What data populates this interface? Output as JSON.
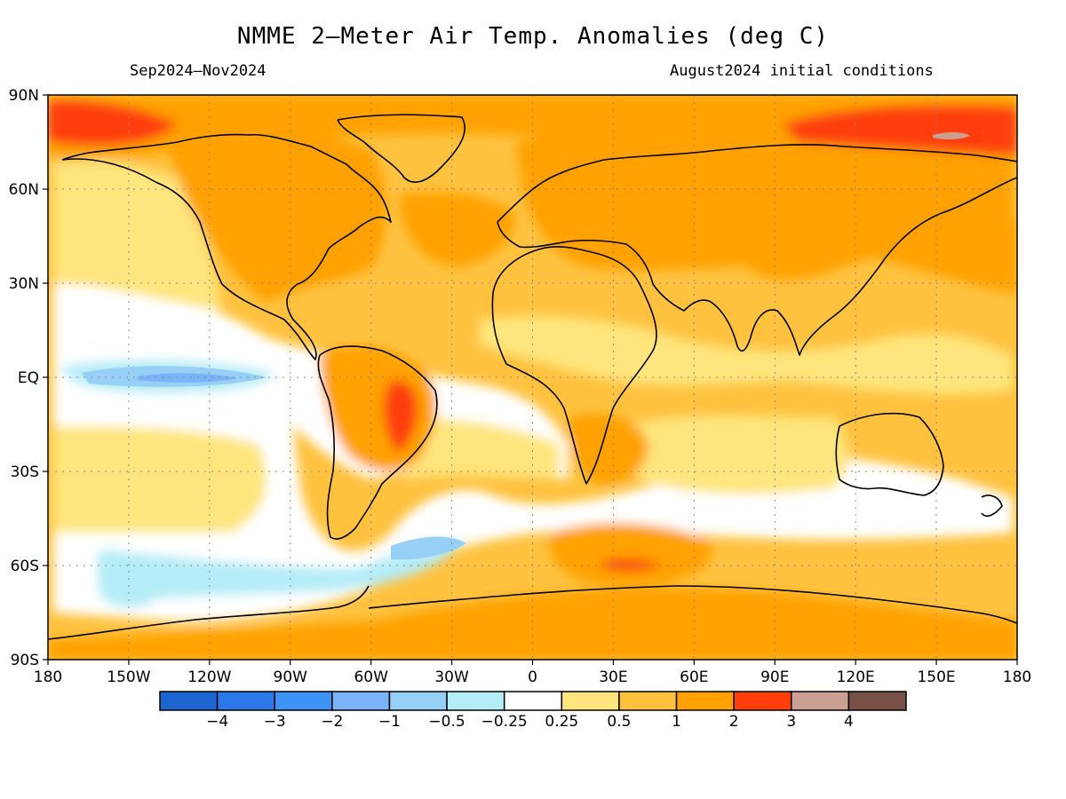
{
  "header": {
    "title": "NMME 2–Meter Air Temp. Anomalies (deg C)",
    "period": "Sep2024–Nov2024",
    "init": "August2024 initial conditions"
  },
  "axes": {
    "lat_labels": [
      "90N",
      "60N",
      "30N",
      "EQ",
      "30S",
      "60S",
      "90S"
    ],
    "lat_values": [
      90,
      60,
      30,
      0,
      -30,
      -60,
      -90
    ],
    "lon_labels": [
      "180",
      "150W",
      "120W",
      "90W",
      "60W",
      "30W",
      "0",
      "30E",
      "60E",
      "90E",
      "120E",
      "150E",
      "180"
    ],
    "lon_values": [
      -180,
      -150,
      -120,
      -90,
      -60,
      -30,
      0,
      30,
      60,
      90,
      120,
      150,
      180
    ]
  },
  "colorbar": {
    "colors": [
      "#1b64d1",
      "#2b78eb",
      "#3d94f5",
      "#78b4f7",
      "#97d0f6",
      "#b4ecf7",
      "#ffffff",
      "#ffe57d",
      "#ffc23f",
      "#ffa100",
      "#ff3e0a",
      "#cba093",
      "#775046"
    ],
    "labels": [
      "−4",
      "−3",
      "−2",
      "−1",
      "−0.5",
      "−0.25",
      "0.25",
      "0.5",
      "1",
      "2",
      "3",
      "4"
    ]
  },
  "chart_data": {
    "type": "heatmap",
    "title": "NMME 2–Meter Air Temp. Anomalies (deg C)",
    "subtitle_left": "Sep2024–Nov2024",
    "subtitle_right": "August2024 initial conditions",
    "units": "deg C",
    "xlim": [
      -180,
      180
    ],
    "ylim": [
      -90,
      90
    ],
    "grid": true,
    "contour_levels": [
      -4,
      -3,
      -2,
      -1,
      -0.5,
      -0.25,
      0.25,
      0.5,
      1,
      2,
      3,
      4
    ],
    "background_class": "0.5 to 1",
    "regions": [
      {
        "name": "Arctic north of Alaska",
        "lon": [
          -180,
          -150
        ],
        "lat": [
          75,
          90
        ],
        "class": "2 to 3"
      },
      {
        "name": "Arctic north of Siberia",
        "lon": [
          85,
          180
        ],
        "lat": [
          70,
          90
        ],
        "class": "2 to 3"
      },
      {
        "name": "Siberian Arctic peak",
        "lon": [
          115,
          125
        ],
        "lat": [
          74,
          78
        ],
        "class": "3 to 4"
      },
      {
        "name": "Eurasia",
        "lon": [
          30,
          150
        ],
        "lat": [
          35,
          70
        ],
        "class": "1 to 2"
      },
      {
        "name": "North America",
        "lon": [
          -130,
          -60
        ],
        "lat": [
          25,
          65
        ],
        "class": "1 to 2"
      },
      {
        "name": "Brazil interior",
        "lon": [
          -65,
          -40
        ],
        "lat": [
          -25,
          0
        ],
        "class": "1 to 2"
      },
      {
        "name": "Central Brazil peak",
        "lon": [
          -50,
          -43
        ],
        "lat": [
          -25,
          -5
        ],
        "class": "2 to 3"
      },
      {
        "name": "Southern Africa",
        "lon": [
          15,
          35
        ],
        "lat": [
          -35,
          -5
        ],
        "class": "1 to 2"
      },
      {
        "name": "Antarctica",
        "lon": [
          -180,
          180
        ],
        "lat": [
          -90,
          -70
        ],
        "class": "1 to 2"
      },
      {
        "name": "South of Africa ocean peak",
        "lon": [
          25,
          50
        ],
        "lat": [
          -62,
          -58
        ],
        "class": "2 to 3"
      },
      {
        "name": "Equatorial East Pacific",
        "lon": [
          -170,
          -100
        ],
        "lat": [
          -5,
          5
        ],
        "class": "-1 to -0.5"
      },
      {
        "name": "Southeast Pacific",
        "lon": [
          -170,
          -70
        ],
        "lat": [
          -70,
          -45
        ],
        "class": "-0.5 to -0.25"
      },
      {
        "name": "Tropical East Pacific",
        "lon": [
          -140,
          -80
        ],
        "lat": [
          -30,
          10
        ],
        "class": "-0.25 to 0.25"
      }
    ]
  }
}
